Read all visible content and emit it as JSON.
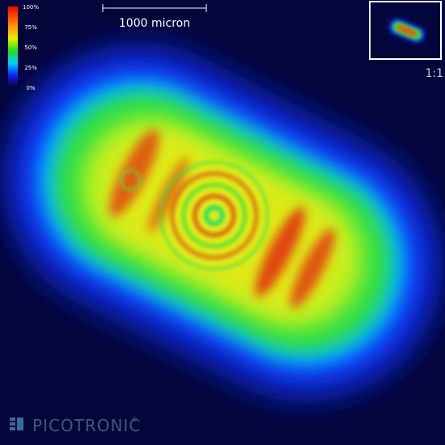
{
  "colorbar": {
    "labels": [
      "100%",
      "75%",
      "50%",
      "25%",
      "0%"
    ]
  },
  "scale_bar": {
    "label": "1000 micron"
  },
  "inset": {
    "label": "1:1"
  },
  "logo": {
    "text": "PICOTRONIC",
    "mark": "®"
  }
}
